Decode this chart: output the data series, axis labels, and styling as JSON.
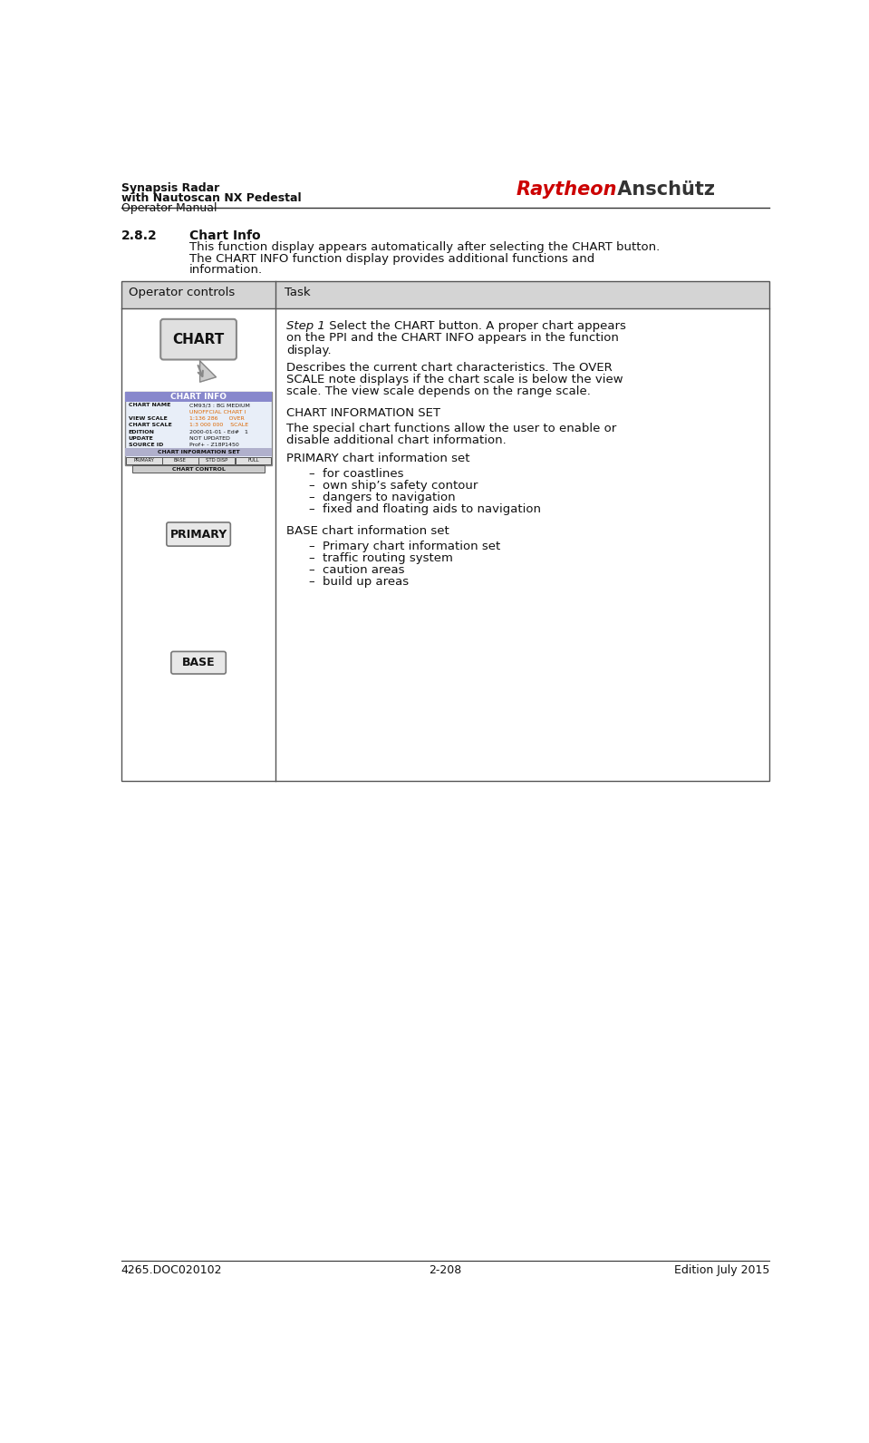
{
  "page_width": 9.59,
  "page_height": 15.91,
  "bg_color": "#ffffff",
  "header_left_lines": [
    "Synapsis Radar",
    "with Nautoscan NX Pedestal",
    "Operator Manual"
  ],
  "raytheon_color": "#cc0000",
  "anschutz_color": "#333333",
  "section_number": "2.8.2",
  "section_title": "Chart Info",
  "intro_lines": [
    "This function display appears automatically after selecting the CHART button.",
    "The CHART INFO function display provides additional functions and",
    "information."
  ],
  "table_header_col1": "Operator controls",
  "table_header_col2": "Task",
  "table_header_bg": "#d4d4d4",
  "table_border_color": "#555555",
  "step1_italic": "Step 1",
  "step1_rest": " Select the CHART button. A proper chart appears",
  "step1_line2": "on the PPI and the CHART INFO appears in the function",
  "step1_line3": "display.",
  "desc_line1": "Describes the current chart characteristics. The OVER",
  "desc_line2": "SCALE note displays if the chart scale is below the view",
  "desc_line3": "scale. The view scale depends on the range scale.",
  "chart_info_set_header": "CHART INFORMATION SET",
  "chart_info_set_line1": "The special chart functions allow the user to enable or",
  "chart_info_set_line2": "disable additional chart information.",
  "primary_header": "PRIMARY chart information set",
  "primary_bullets": [
    "for coastlines",
    "own ship’s safety contour",
    "dangers to navigation",
    "fixed and floating aids to navigation"
  ],
  "base_header": "BASE chart information set",
  "base_bullets": [
    "Primary chart information set",
    "traffic routing system",
    "caution areas",
    "build up areas"
  ],
  "footer_left": "4265.DOC020102",
  "footer_center": "2-208",
  "footer_right": "Edition July 2015",
  "chart_info_title_bg": "#8888cc",
  "chart_info_bg": "#e8eef8",
  "chart_info_set_bar_bg": "#b0b0cc",
  "btn_bg": "#e0e0e0"
}
